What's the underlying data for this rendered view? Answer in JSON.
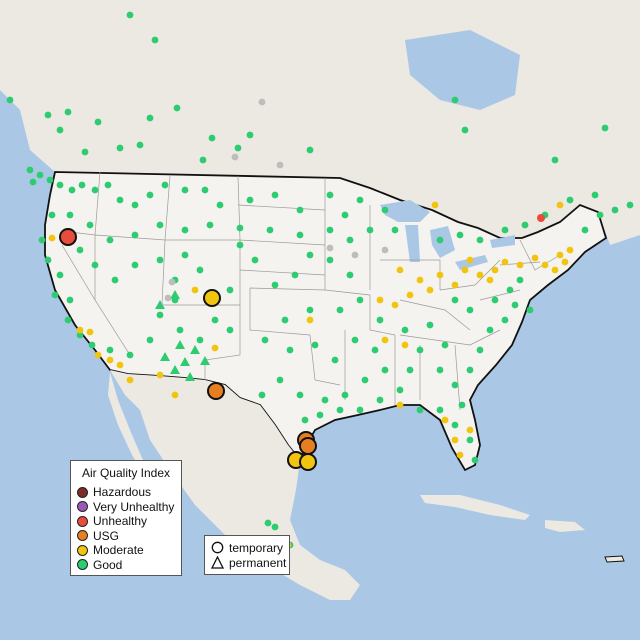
{
  "legend": {
    "title": "Air Quality Index",
    "categories": [
      {
        "label": "Hazardous",
        "color": "#7e2b2b"
      },
      {
        "label": "Very Unhealthy",
        "color": "#9b59b6"
      },
      {
        "label": "Unhealthy",
        "color": "#e74c3c"
      },
      {
        "label": "USG",
        "color": "#e67e22"
      },
      {
        "label": "Moderate",
        "color": "#f1c40f"
      },
      {
        "label": "Good",
        "color": "#2ecc71"
      }
    ],
    "types": [
      {
        "label": "temporary",
        "shape": "circle-icon"
      },
      {
        "label": "permanent",
        "shape": "triangle-icon"
      }
    ]
  },
  "colors": {
    "land": "#f4f2ee",
    "water": "#aac8e6",
    "border": "#111111",
    "state_line": "#9a9a9a",
    "no_data": "#bdbdbd"
  }
}
